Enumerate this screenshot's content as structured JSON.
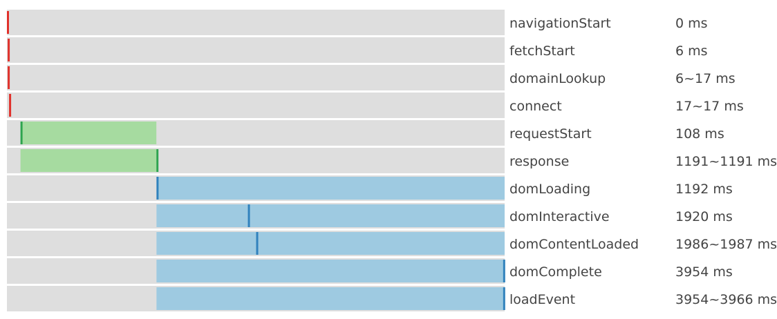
{
  "chart_data": {
    "type": "bar",
    "orientation": "horizontal",
    "x_unit": "ms",
    "xlim": [
      0,
      3966
    ],
    "grid": false,
    "legend": "none",
    "rows": [
      {
        "name": "navigationStart",
        "value_label": "0 ms",
        "start": 0,
        "end": 0,
        "phase": "network"
      },
      {
        "name": "fetchStart",
        "value_label": "6 ms",
        "start": 6,
        "end": 6,
        "phase": "network"
      },
      {
        "name": "domainLookup",
        "value_label": "6~17 ms",
        "start": 6,
        "end": 17,
        "phase": "network"
      },
      {
        "name": "connect",
        "value_label": "17~17 ms",
        "start": 17,
        "end": 17,
        "phase": "network"
      },
      {
        "name": "requestStart",
        "value_label": "108 ms",
        "start": 108,
        "end": 108,
        "phase": "request",
        "span": [
          108,
          1191
        ]
      },
      {
        "name": "response",
        "value_label": "1191~1191 ms",
        "start": 1191,
        "end": 1191,
        "phase": "request",
        "span": [
          108,
          1191
        ]
      },
      {
        "name": "domLoading",
        "value_label": "1192 ms",
        "start": 1192,
        "end": 1192,
        "phase": "dom",
        "span": [
          1192,
          3966
        ]
      },
      {
        "name": "domInteractive",
        "value_label": "1920 ms",
        "start": 1920,
        "end": 1920,
        "phase": "dom",
        "span": [
          1192,
          3966
        ]
      },
      {
        "name": "domContentLoaded",
        "value_label": "1986~1987 ms",
        "start": 1986,
        "end": 1987,
        "phase": "dom",
        "span": [
          1192,
          3966
        ]
      },
      {
        "name": "domComplete",
        "value_label": "3954 ms",
        "start": 3954,
        "end": 3954,
        "phase": "dom",
        "span": [
          1192,
          3966
        ]
      },
      {
        "name": "loadEvent",
        "value_label": "3954~3966 ms",
        "start": 3954,
        "end": 3966,
        "phase": "dom",
        "span": [
          1192,
          3966
        ]
      }
    ]
  },
  "colors": {
    "track": "#dedede",
    "row_background": "#ffffff",
    "network_marker": "#e0312b",
    "request_fill": "#a6dba0",
    "request_marker": "#2ea44f",
    "dom_fill": "#9ecae1",
    "dom_marker": "#3182bd",
    "text": "#444444"
  }
}
